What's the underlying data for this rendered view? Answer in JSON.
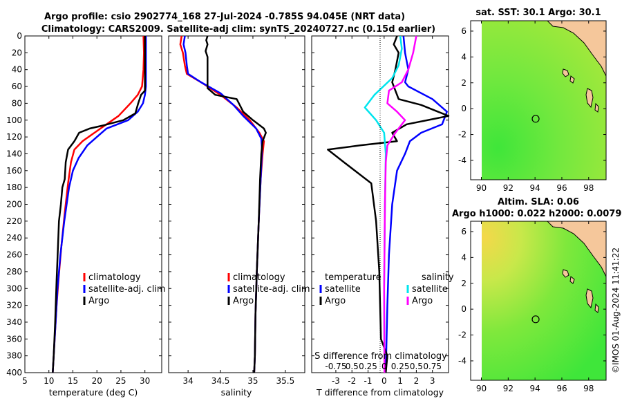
{
  "header": {
    "line1": "Argo profile: csio 2902774_168 27-Jul-2024 -0.785S 94.045E (NRT data)",
    "line2": "Climatology: CARS2009. Satellite-adj clim: synTS_20240727.nc (0.15d earlier)"
  },
  "side_label": "©IMOS 01-Aug-2024 11:41:22",
  "colors": {
    "climatology": "#ff0000",
    "satellite": "#0000ff",
    "argo": "#000000",
    "sal_satellite": "#00e5ee",
    "sal_argo": "#ff00ff"
  },
  "chart_data": [
    {
      "type": "line",
      "id": "temperature",
      "xlabel": "temperature (deg C)",
      "xlim": [
        5,
        33.5
      ],
      "xticks": [
        5,
        10,
        15,
        20,
        25,
        30
      ],
      "ylim": [
        400,
        0
      ],
      "yticks": [
        0,
        20,
        40,
        60,
        80,
        100,
        120,
        140,
        160,
        180,
        200,
        220,
        240,
        260,
        280,
        300,
        320,
        340,
        360,
        380,
        400
      ],
      "legend": [
        "climatology",
        "satellite-adj. clim",
        "Argo"
      ],
      "series": [
        {
          "name": "climatology",
          "color": "#ff0000",
          "points": [
            [
              29.7,
              0
            ],
            [
              29.8,
              20
            ],
            [
              29.7,
              40
            ],
            [
              29.4,
              60
            ],
            [
              28.5,
              70
            ],
            [
              27,
              80
            ],
            [
              24.5,
              95
            ],
            [
              22,
              105
            ],
            [
              19.5,
              115
            ],
            [
              17,
              125
            ],
            [
              15.3,
              135
            ],
            [
              14.6,
              150
            ],
            [
              14.0,
              175
            ],
            [
              13.3,
              210
            ],
            [
              12.6,
              250
            ],
            [
              12.0,
              290
            ],
            [
              11.6,
              320
            ],
            [
              11.3,
              350
            ],
            [
              11.0,
              380
            ],
            [
              10.8,
              400
            ]
          ]
        },
        {
          "name": "satellite-adj. clim",
          "color": "#0000ff",
          "points": [
            [
              30.2,
              0
            ],
            [
              30.2,
              20
            ],
            [
              30.2,
              40
            ],
            [
              30.2,
              60
            ],
            [
              30.0,
              70
            ],
            [
              29.6,
              80
            ],
            [
              28.5,
              90
            ],
            [
              26.5,
              100
            ],
            [
              22,
              110
            ],
            [
              20,
              120
            ],
            [
              18,
              130
            ],
            [
              16.2,
              145
            ],
            [
              15.0,
              160
            ],
            [
              14.2,
              180
            ],
            [
              13.2,
              220
            ],
            [
              12.4,
              260
            ],
            [
              11.8,
              300
            ],
            [
              11.4,
              340
            ],
            [
              11.0,
              380
            ],
            [
              10.8,
              400
            ]
          ]
        },
        {
          "name": "Argo",
          "color": "#000000",
          "points": [
            [
              30.0,
              0
            ],
            [
              30.0,
              30
            ],
            [
              30.0,
              65
            ],
            [
              29.2,
              70
            ],
            [
              28.6,
              80
            ],
            [
              28.0,
              92
            ],
            [
              25.5,
              100
            ],
            [
              21.5,
              106
            ],
            [
              18.5,
              110
            ],
            [
              16.3,
              115
            ],
            [
              15.3,
              125
            ],
            [
              14.0,
              135
            ],
            [
              13.5,
              150
            ],
            [
              13.3,
              170
            ],
            [
              12.8,
              180
            ],
            [
              12.5,
              200
            ],
            [
              12.1,
              220
            ],
            [
              11.9,
              250
            ],
            [
              11.6,
              290
            ],
            [
              11.3,
              340
            ],
            [
              11.0,
              380
            ],
            [
              10.8,
              400
            ]
          ]
        }
      ]
    },
    {
      "type": "line",
      "id": "salinity",
      "xlabel": "salinity",
      "xlim": [
        33.7,
        35.8
      ],
      "xticks": [
        34,
        34.5,
        35,
        35.5
      ],
      "xticklabels": [
        "34",
        "34.5",
        "35",
        "35.5"
      ],
      "ylim": [
        400,
        0
      ],
      "legend": [
        "climatology",
        "satellite-adj. clim",
        "Argo"
      ],
      "series": [
        {
          "name": "climatology",
          "color": "#ff0000",
          "points": [
            [
              33.9,
              0
            ],
            [
              33.88,
              10
            ],
            [
              33.92,
              20
            ],
            [
              33.95,
              35
            ],
            [
              33.98,
              45
            ],
            [
              34.2,
              55
            ],
            [
              34.5,
              70
            ],
            [
              34.75,
              85
            ],
            [
              34.95,
              100
            ],
            [
              35.1,
              115
            ],
            [
              35.17,
              125
            ],
            [
              35.15,
              140
            ],
            [
              35.12,
              170
            ],
            [
              35.09,
              220
            ],
            [
              35.06,
              280
            ],
            [
              35.04,
              330
            ],
            [
              35.03,
              380
            ],
            [
              35.02,
              400
            ]
          ]
        },
        {
          "name": "satellite-adj. clim",
          "color": "#0000ff",
          "points": [
            [
              33.95,
              0
            ],
            [
              33.93,
              10
            ],
            [
              33.96,
              20
            ],
            [
              33.98,
              35
            ],
            [
              34.0,
              45
            ],
            [
              34.2,
              55
            ],
            [
              34.5,
              68
            ],
            [
              34.7,
              82
            ],
            [
              34.85,
              95
            ],
            [
              35.05,
              110
            ],
            [
              35.13,
              122
            ],
            [
              35.14,
              135
            ],
            [
              35.12,
              170
            ],
            [
              35.09,
              220
            ],
            [
              35.06,
              280
            ],
            [
              35.04,
              330
            ],
            [
              35.03,
              380
            ],
            [
              35.02,
              400
            ]
          ]
        },
        {
          "name": "Argo",
          "color": "#000000",
          "points": [
            [
              34.3,
              0
            ],
            [
              34.28,
              5
            ],
            [
              34.3,
              10
            ],
            [
              34.27,
              18
            ],
            [
              34.3,
              25
            ],
            [
              34.3,
              62
            ],
            [
              34.42,
              70
            ],
            [
              34.75,
              75
            ],
            [
              34.85,
              90
            ],
            [
              35.0,
              100
            ],
            [
              35.17,
              110
            ],
            [
              35.2,
              115
            ],
            [
              35.15,
              125
            ],
            [
              35.13,
              140
            ],
            [
              35.11,
              170
            ],
            [
              35.09,
              220
            ],
            [
              35.06,
              280
            ],
            [
              35.04,
              330
            ],
            [
              35.03,
              380
            ],
            [
              35.02,
              400
            ]
          ]
        }
      ]
    },
    {
      "type": "line",
      "id": "difference",
      "xlabel": "T difference from climatology",
      "xlim": [
        -4.5,
        4
      ],
      "xticks": [
        -3,
        -2,
        -1,
        0,
        1,
        2,
        3
      ],
      "top_axis_label": "S difference from climatology",
      "top_ticks": [
        "-0.75",
        "0.5",
        "0.25",
        "0",
        "0.25",
        "0.5",
        "0.75"
      ],
      "ylim": [
        400,
        0
      ],
      "legend_headers": [
        "temperature",
        "salinity"
      ],
      "legend": [
        "satellite",
        "Argo",
        "satellite",
        "Argo"
      ],
      "series": [
        {
          "name": "temperature satellite",
          "color": "#0000ff",
          "points": [
            [
              1.2,
              0
            ],
            [
              1.3,
              20
            ],
            [
              1.5,
              40
            ],
            [
              1.3,
              55
            ],
            [
              1.5,
              60
            ],
            [
              3.0,
              75
            ],
            [
              3.9,
              90
            ],
            [
              3.6,
              105
            ],
            [
              2.3,
              115
            ],
            [
              1.6,
              125
            ],
            [
              1.3,
              140
            ],
            [
              0.8,
              160
            ],
            [
              0.5,
              200
            ],
            [
              0.3,
              260
            ],
            [
              0.2,
              320
            ],
            [
              0.1,
              400
            ]
          ]
        },
        {
          "name": "temperature Argo",
          "color": "#000000",
          "points": [
            [
              0.8,
              0
            ],
            [
              0.6,
              10
            ],
            [
              0.9,
              20
            ],
            [
              0.7,
              40
            ],
            [
              0.5,
              55
            ],
            [
              0.7,
              65
            ],
            [
              0.9,
              75
            ],
            [
              2.3,
              82
            ],
            [
              4.0,
              95
            ],
            [
              1.4,
              105
            ],
            [
              0.5,
              115
            ],
            [
              0.8,
              125
            ],
            [
              -1.5,
              130
            ],
            [
              -3.5,
              135
            ],
            [
              -2.5,
              150
            ],
            [
              -0.8,
              175
            ],
            [
              -0.5,
              220
            ],
            [
              -0.3,
              280
            ],
            [
              -0.2,
              360
            ],
            [
              0.2,
              380
            ],
            [
              0.1,
              400
            ]
          ]
        },
        {
          "name": "salinity satellite",
          "color": "#00e5ee",
          "points": [
            [
              1.0,
              0
            ],
            [
              1.1,
              15
            ],
            [
              0.9,
              35
            ],
            [
              0.5,
              50
            ],
            [
              -0.6,
              70
            ],
            [
              -1.2,
              85
            ],
            [
              -0.5,
              100
            ],
            [
              0,
              115
            ],
            [
              0.1,
              140
            ],
            [
              0.05,
              200
            ],
            [
              0,
              300
            ],
            [
              0.02,
              400
            ]
          ]
        },
        {
          "name": "salinity Argo",
          "color": "#ff00ff",
          "points": [
            [
              2.0,
              0
            ],
            [
              1.8,
              20
            ],
            [
              1.5,
              40
            ],
            [
              1.1,
              55
            ],
            [
              0.3,
              65
            ],
            [
              0.2,
              80
            ],
            [
              0.8,
              90
            ],
            [
              1.3,
              100
            ],
            [
              0.7,
              115
            ],
            [
              0.2,
              130
            ],
            [
              0.1,
              150
            ],
            [
              0.05,
              200
            ],
            [
              0,
              300
            ],
            [
              0.02,
              400
            ]
          ]
        }
      ]
    },
    {
      "type": "heatmap",
      "id": "sst-map",
      "title": "sat. SST: 30.1 Argo: 30.1",
      "xticks": [
        90,
        92,
        94,
        96,
        98
      ],
      "yticks": [
        -4,
        -2,
        0,
        2,
        4,
        6
      ],
      "xlim": [
        89.2,
        99.3
      ],
      "ylim": [
        -5.5,
        6.8
      ],
      "float_position": [
        94.045,
        -0.785
      ]
    },
    {
      "type": "heatmap",
      "id": "sla-map",
      "title": "Altim. SLA: 0.06",
      "subtitle": "Argo h1000: 0.022 h2000: 0.0079",
      "xticks": [
        90,
        92,
        94,
        96,
        98
      ],
      "yticks": [
        -4,
        -2,
        0,
        2,
        4,
        6
      ],
      "xlim": [
        89.2,
        99.3
      ],
      "ylim": [
        -5.5,
        6.8
      ],
      "float_position": [
        94.045,
        -0.785
      ]
    }
  ]
}
